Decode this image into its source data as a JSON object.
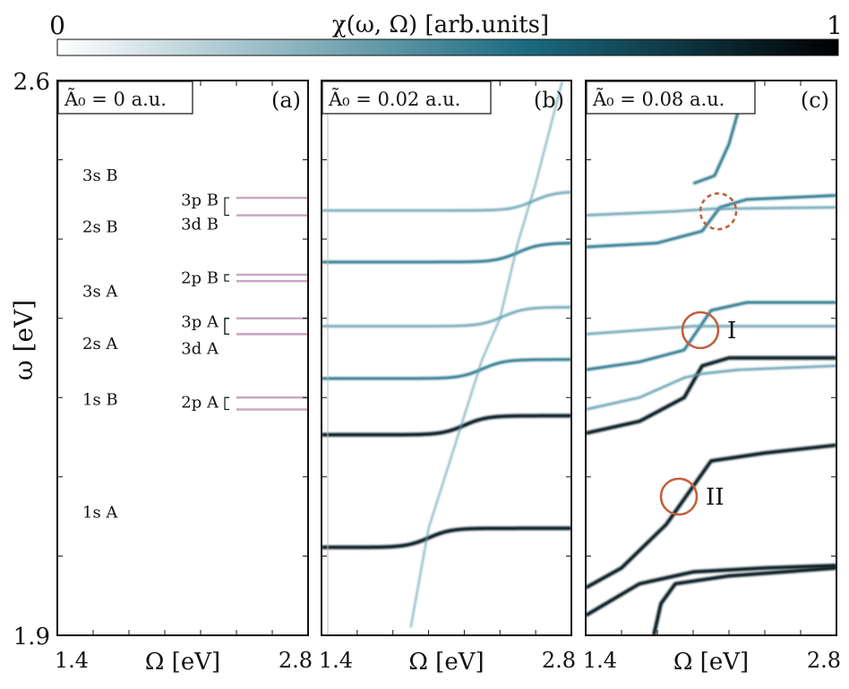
{
  "colorbar": {
    "label": "χ(ω, Ω)  [arb.units]",
    "min_label": "0",
    "max_label": "1",
    "colors": [
      "#ffffff",
      "#0e5a72",
      "#000000"
    ]
  },
  "y_axis": {
    "label": "ω [eV]",
    "ticks": [
      "2.6",
      "1.9"
    ]
  },
  "chart_data": [
    {
      "type": "heatmap",
      "panel_label": "(a)",
      "title": "Ã₀ = 0 a.u.",
      "xlabel": "Ω [eV]",
      "ylabel": "ω [eV]",
      "xlim": [
        1.4,
        2.8
      ],
      "ylim": [
        1.9,
        2.6
      ],
      "x_tick_labels": [
        "1.4",
        "2.8"
      ],
      "y_tick_labels": [
        "2.6",
        "1.9"
      ],
      "levels": [
        {
          "name": "1s A",
          "omega": 2.035,
          "strength": 1.0
        },
        {
          "name": "1s B",
          "omega": 2.177,
          "strength": 1.0
        },
        {
          "name": "2s A",
          "omega": 2.248,
          "strength": 0.5
        },
        {
          "name": "3s A",
          "omega": 2.314,
          "strength": 0.35
        },
        {
          "name": "2s B",
          "omega": 2.395,
          "strength": 0.5
        },
        {
          "name": "3s B",
          "omega": 2.46,
          "strength": 0.35
        }
      ],
      "p_d_states": [
        {
          "name": "2p A",
          "omega": [
            2.185,
            2.2
          ]
        },
        {
          "name": "3p A",
          "omega": [
            2.28,
            2.3
          ]
        },
        {
          "name": "3d A",
          "omega": [
            2.28,
            2.3
          ]
        },
        {
          "name": "2p B",
          "omega": [
            2.347,
            2.355
          ]
        },
        {
          "name": "3p B",
          "omega": [
            2.43,
            2.452
          ]
        },
        {
          "name": "3d B",
          "omega": [
            2.43,
            2.452
          ]
        }
      ]
    },
    {
      "type": "heatmap",
      "panel_label": "(b)",
      "title": "Ã₀ = 0.02 a.u.",
      "xlabel": "Ω [eV]",
      "xlim": [
        1.4,
        2.8
      ],
      "ylim": [
        1.9,
        2.6
      ],
      "x_tick_labels": [
        "1.4",
        "2.8"
      ],
      "levels_omega": [
        2.035,
        2.177,
        2.248,
        2.314,
        2.395,
        2.46
      ],
      "diagonal_feature": [
        [
          1.9,
          1.91
        ],
        [
          2.0,
          2.035
        ],
        [
          2.2,
          2.177
        ],
        [
          2.3,
          2.248
        ],
        [
          2.4,
          2.3
        ],
        [
          2.5,
          2.395
        ],
        [
          2.6,
          2.47
        ],
        [
          2.75,
          2.6
        ]
      ]
    },
    {
      "type": "heatmap",
      "panel_label": "(c)",
      "title": "Ã₀ = 0.08 a.u.",
      "xlabel": "Ω [eV]",
      "xlim": [
        1.4,
        2.8
      ],
      "ylim": [
        1.9,
        2.6
      ],
      "x_tick_labels": [
        "1.4",
        "2.8"
      ],
      "annotations": [
        {
          "label": "I",
          "x": 2.04,
          "y": 2.285
        },
        {
          "label": "II",
          "x": 1.92,
          "y": 2.075
        },
        {
          "label": "",
          "x": 2.14,
          "y": 2.435,
          "style": "dashed"
        }
      ]
    }
  ]
}
